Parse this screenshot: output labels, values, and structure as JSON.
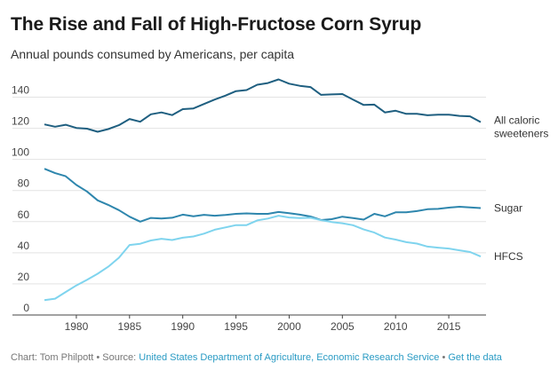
{
  "colors": {
    "all_caloric": "#1f5f80",
    "sugar": "#2e86ad",
    "hfcs": "#7fd4ee",
    "grid": "#e3e3e3",
    "link": "#2a9bc4"
  },
  "footer": {
    "credit": "Chart: Tom Philpott",
    "sep1": " • Source: ",
    "source": "United States Department of Agriculture, Economic Research Service",
    "sep2": " • ",
    "get_data": "Get the data"
  },
  "chart_data": {
    "type": "line",
    "title": "The Rise and Fall of High-Fructose Corn Syrup",
    "subtitle": "Annual pounds consumed by Americans, per capita",
    "xlim": [
      1976.5,
      2018.5
    ],
    "ylim": [
      0,
      150
    ],
    "x_ticks": [
      1980,
      1985,
      1990,
      1995,
      2000,
      2005,
      2010,
      2015
    ],
    "y_ticks": [
      0,
      20,
      40,
      60,
      80,
      100,
      120,
      140
    ],
    "grid": true,
    "x": [
      1977,
      1978,
      1979,
      1980,
      1981,
      1982,
      1983,
      1984,
      1985,
      1986,
      1987,
      1988,
      1989,
      1990,
      1991,
      1992,
      1993,
      1994,
      1995,
      1996,
      1997,
      1998,
      1999,
      2000,
      2001,
      2002,
      2003,
      2004,
      2005,
      2006,
      2007,
      2008,
      2009,
      2010,
      2011,
      2012,
      2013,
      2014,
      2015,
      2016,
      2017,
      2018
    ],
    "series": [
      {
        "name": "All caloric sweeteners",
        "label_lines": [
          "All caloric",
          "sweeteners"
        ],
        "color": "#1f5f80",
        "values": [
          122.5,
          121.0,
          122.3,
          120.2,
          119.8,
          117.8,
          119.5,
          122.0,
          126.0,
          124.2,
          129.0,
          130.2,
          128.5,
          132.3,
          132.8,
          135.6,
          138.5,
          141.0,
          143.9,
          144.6,
          148.0,
          149.1,
          151.4,
          148.7,
          147.3,
          146.5,
          141.5,
          141.8,
          142.0,
          138.4,
          135.0,
          135.2,
          130.2,
          131.3,
          129.3,
          129.3,
          128.4,
          128.7,
          128.8,
          128.0,
          127.7,
          124.0
        ]
      },
      {
        "name": "Sugar",
        "color": "#2e86ad",
        "values": [
          94.0,
          91.2,
          89.2,
          83.6,
          79.4,
          73.7,
          70.8,
          67.4,
          63.2,
          60.0,
          62.4,
          62.0,
          62.5,
          64.5,
          63.4,
          64.4,
          63.8,
          64.3,
          65.0,
          65.3,
          65.0,
          65.0,
          66.2,
          65.5,
          64.5,
          63.3,
          61.0,
          61.6,
          63.2,
          62.3,
          61.3,
          65.0,
          63.4,
          66.0,
          66.0,
          66.8,
          68.0,
          68.2,
          69.0,
          69.6,
          69.2,
          68.7
        ]
      },
      {
        "name": "HFCS",
        "color": "#7fd4ee",
        "values": [
          9.5,
          10.5,
          14.8,
          19.0,
          22.6,
          26.5,
          31.0,
          36.8,
          45.0,
          45.8,
          47.9,
          49.0,
          48.2,
          49.7,
          50.5,
          52.3,
          54.8,
          56.3,
          57.8,
          57.8,
          60.8,
          62.0,
          63.8,
          62.7,
          62.3,
          62.5,
          60.9,
          59.8,
          59.0,
          57.7,
          55.0,
          53.0,
          49.8,
          48.5,
          46.8,
          45.9,
          44.0,
          43.3,
          42.7,
          41.6,
          40.5,
          37.6
        ]
      }
    ]
  }
}
